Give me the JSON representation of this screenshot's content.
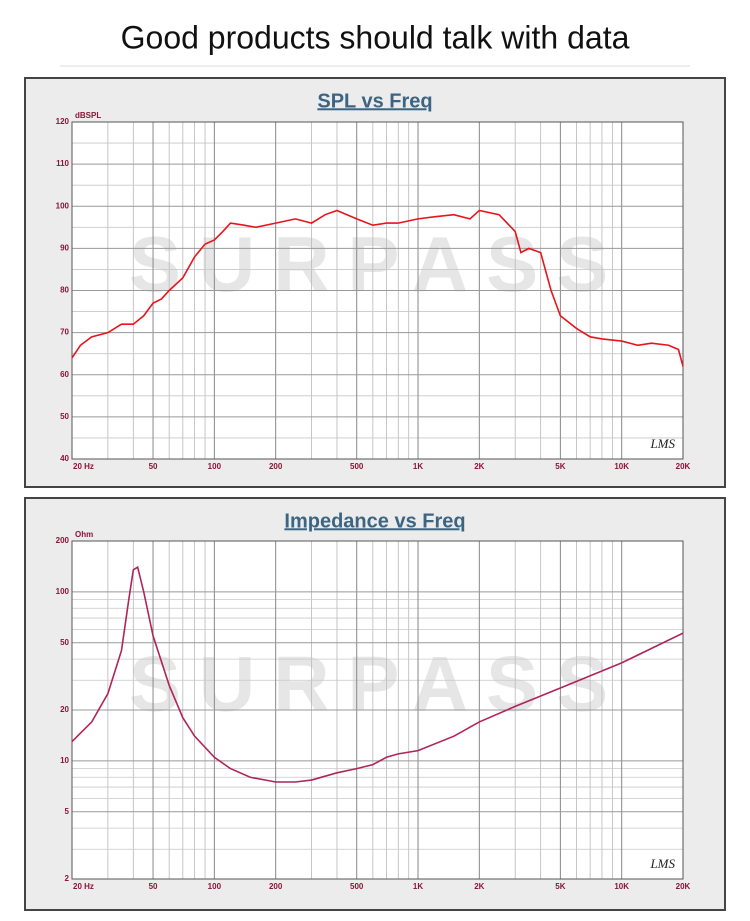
{
  "header": {
    "title": "Good products should talk with data"
  },
  "chart_data": [
    {
      "type": "line",
      "title": "SPL vs Freq",
      "y_label": "dBSPL",
      "annotation": "LMS",
      "watermark": "SURPASS",
      "xscale": "log",
      "yscale": "linear",
      "color": "#e8141b",
      "grid": true,
      "x": [
        20,
        22,
        25,
        30,
        35,
        40,
        45,
        50,
        55,
        60,
        70,
        80,
        90,
        100,
        110,
        120,
        140,
        160,
        200,
        250,
        300,
        350,
        400,
        500,
        600,
        700,
        800,
        1000,
        1200,
        1500,
        1800,
        2000,
        2500,
        3000,
        3200,
        3500,
        4000,
        4500,
        5000,
        6000,
        7000,
        8000,
        10000,
        12000,
        14000,
        17000,
        19000,
        20000
      ],
      "values": [
        64,
        67,
        69,
        70,
        72,
        72,
        74,
        77,
        78,
        80,
        83,
        88,
        91,
        92,
        94,
        96,
        95.5,
        95,
        96,
        97,
        96,
        98,
        99,
        97,
        95.5,
        96,
        96,
        97,
        97.5,
        98,
        97,
        99,
        98,
        94,
        89,
        90,
        89,
        80,
        74,
        71,
        69,
        68.5,
        68,
        67,
        67.5,
        67,
        66,
        62
      ],
      "xlim": [
        20,
        20000
      ],
      "xticks": [
        {
          "value": 20,
          "label": "20 Hz"
        },
        50,
        100,
        200,
        500,
        {
          "value": 1000,
          "label": "1K"
        },
        {
          "value": 2000,
          "label": "2K"
        },
        {
          "value": 5000,
          "label": "5K"
        },
        {
          "value": 10000,
          "label": "10K"
        },
        {
          "value": 20000,
          "label": "20K"
        }
      ],
      "xminorticks": [
        30,
        40,
        60,
        70,
        80,
        90,
        300,
        400,
        600,
        700,
        800,
        900,
        3000,
        4000,
        6000,
        7000,
        8000,
        9000
      ],
      "ylim": [
        40,
        120
      ],
      "yticks": [
        40,
        50,
        60,
        70,
        80,
        90,
        100,
        110,
        120
      ],
      "yminorticks": [
        45,
        55,
        65,
        75,
        85,
        95,
        105,
        115
      ]
    },
    {
      "type": "line",
      "title": "Impedance vs Freq",
      "y_label": "Ohm",
      "annotation": "LMS",
      "watermark": "SURPASS",
      "xscale": "log",
      "yscale": "log",
      "color": "#b0245a",
      "grid": true,
      "x": [
        20,
        25,
        30,
        35,
        38,
        40,
        42,
        45,
        50,
        60,
        70,
        80,
        100,
        120,
        150,
        200,
        250,
        300,
        400,
        500,
        600,
        700,
        800,
        1000,
        1500,
        2000,
        3000,
        5000,
        10000,
        20000
      ],
      "values": [
        13,
        17,
        25,
        45,
        90,
        135,
        140,
        100,
        55,
        28,
        18,
        14,
        10.5,
        9,
        8,
        7.5,
        7.5,
        7.7,
        8.5,
        9,
        9.5,
        10.5,
        11,
        11.5,
        14,
        17,
        21,
        27,
        38,
        57
      ],
      "xlim": [
        20,
        20000
      ],
      "xticks": [
        {
          "value": 20,
          "label": "20 Hz"
        },
        50,
        100,
        200,
        500,
        {
          "value": 1000,
          "label": "1K"
        },
        {
          "value": 2000,
          "label": "2K"
        },
        {
          "value": 5000,
          "label": "5K"
        },
        {
          "value": 10000,
          "label": "10K"
        },
        {
          "value": 20000,
          "label": "20K"
        }
      ],
      "xminorticks": [
        30,
        40,
        60,
        70,
        80,
        90,
        300,
        400,
        600,
        700,
        800,
        900,
        3000,
        4000,
        6000,
        7000,
        8000,
        9000
      ],
      "ylim": [
        2,
        200
      ],
      "yticks": [
        2,
        5,
        10,
        20,
        50,
        100,
        200
      ],
      "yminorticks": [
        3,
        4,
        6,
        7,
        8,
        9,
        30,
        40,
        60,
        70,
        80,
        90
      ]
    }
  ]
}
